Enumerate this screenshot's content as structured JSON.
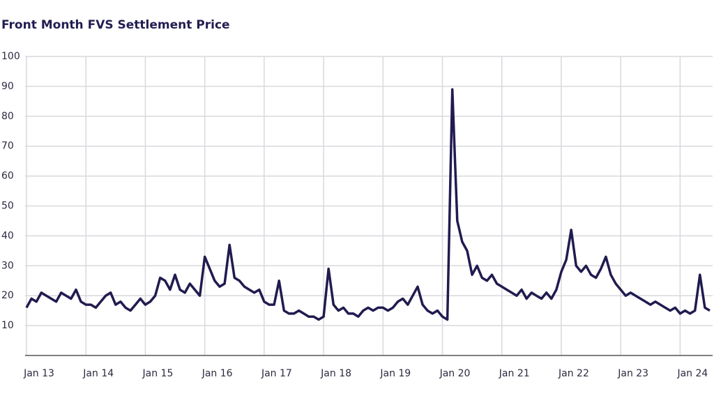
{
  "chart_data": {
    "type": "line",
    "title": "Front Month FVS Settlement Price",
    "x": [
      "2013-01",
      "2013-02",
      "2013-03",
      "2013-04",
      "2013-05",
      "2013-06",
      "2013-07",
      "2013-08",
      "2013-09",
      "2013-10",
      "2013-11",
      "2013-12",
      "2014-01",
      "2014-02",
      "2014-03",
      "2014-04",
      "2014-05",
      "2014-06",
      "2014-07",
      "2014-08",
      "2014-09",
      "2014-10",
      "2014-11",
      "2014-12",
      "2015-01",
      "2015-02",
      "2015-03",
      "2015-04",
      "2015-05",
      "2015-06",
      "2015-07",
      "2015-08",
      "2015-09",
      "2015-10",
      "2015-11",
      "2015-12",
      "2016-01",
      "2016-02",
      "2016-03",
      "2016-04",
      "2016-05",
      "2016-06",
      "2016-07",
      "2016-08",
      "2016-09",
      "2016-10",
      "2016-11",
      "2016-12",
      "2017-01",
      "2017-02",
      "2017-03",
      "2017-04",
      "2017-05",
      "2017-06",
      "2017-07",
      "2017-08",
      "2017-09",
      "2017-10",
      "2017-11",
      "2017-12",
      "2018-01",
      "2018-02",
      "2018-03",
      "2018-04",
      "2018-05",
      "2018-06",
      "2018-07",
      "2018-08",
      "2018-09",
      "2018-10",
      "2018-11",
      "2018-12",
      "2019-01",
      "2019-02",
      "2019-03",
      "2019-04",
      "2019-05",
      "2019-06",
      "2019-07",
      "2019-08",
      "2019-09",
      "2019-10",
      "2019-11",
      "2019-12",
      "2020-01",
      "2020-02",
      "2020-03",
      "2020-04",
      "2020-05",
      "2020-06",
      "2020-07",
      "2020-08",
      "2020-09",
      "2020-10",
      "2020-11",
      "2020-12",
      "2021-01",
      "2021-02",
      "2021-03",
      "2021-04",
      "2021-05",
      "2021-06",
      "2021-07",
      "2021-08",
      "2021-09",
      "2021-10",
      "2021-11",
      "2021-12",
      "2022-01",
      "2022-02",
      "2022-03",
      "2022-04",
      "2022-05",
      "2022-06",
      "2022-07",
      "2022-08",
      "2022-09",
      "2022-10",
      "2022-11",
      "2022-12",
      "2023-01",
      "2023-02",
      "2023-03",
      "2023-04",
      "2023-05",
      "2023-06",
      "2023-07",
      "2023-08",
      "2023-09",
      "2023-10",
      "2023-11",
      "2023-12",
      "2024-01",
      "2024-02",
      "2024-03",
      "2024-04",
      "2024-05",
      "2024-06",
      "2024-07"
    ],
    "series": [
      {
        "name": "FVS",
        "color": "#201b4f",
        "values": [
          16,
          19,
          18,
          21,
          20,
          19,
          18,
          21,
          20,
          19,
          22,
          18,
          17,
          17,
          16,
          18,
          20,
          21,
          17,
          18,
          16,
          15,
          17,
          19,
          17,
          18,
          20,
          26,
          25,
          22,
          27,
          22,
          21,
          24,
          22,
          20,
          33,
          29,
          25,
          23,
          24,
          37,
          26,
          25,
          23,
          22,
          21,
          22,
          18,
          17,
          17,
          25,
          15,
          14,
          14,
          15,
          14,
          13,
          13,
          12,
          13,
          29,
          17,
          15,
          16,
          14,
          14,
          13,
          15,
          16,
          15,
          16,
          16,
          15,
          16,
          18,
          19,
          17,
          20,
          23,
          17,
          15,
          14,
          15,
          13,
          12,
          89,
          45,
          38,
          35,
          27,
          30,
          26,
          25,
          27,
          24,
          23,
          22,
          21,
          20,
          22,
          19,
          21,
          20,
          19,
          21,
          19,
          22,
          28,
          32,
          42,
          30,
          28,
          30,
          27,
          26,
          29,
          33,
          27,
          24,
          22,
          20,
          21,
          20,
          19,
          18,
          17,
          18,
          17,
          16,
          15,
          16,
          14,
          15,
          14,
          15,
          27,
          16,
          15
        ]
      }
    ],
    "xlim": [
      "2013-01",
      "2024-07"
    ],
    "xticks": [
      {
        "value": "2013-01",
        "label": "Jan 13"
      },
      {
        "value": "2014-01",
        "label": "Jan 14"
      },
      {
        "value": "2015-01",
        "label": "Jan 15"
      },
      {
        "value": "2016-01",
        "label": "Jan 16"
      },
      {
        "value": "2017-01",
        "label": "Jan 17"
      },
      {
        "value": "2018-01",
        "label": "Jan 18"
      },
      {
        "value": "2019-01",
        "label": "Jan 19"
      },
      {
        "value": "2020-01",
        "label": "Jan 20"
      },
      {
        "value": "2021-01",
        "label": "Jan 21"
      },
      {
        "value": "2022-01",
        "label": "Jan 22"
      },
      {
        "value": "2023-01",
        "label": "Jan 23"
      },
      {
        "value": "2024-01",
        "label": "Jan 24"
      }
    ],
    "ylim": [
      0,
      100
    ],
    "yticks": [
      10,
      20,
      30,
      40,
      50,
      60,
      70,
      80,
      90,
      100
    ],
    "grid": true
  }
}
